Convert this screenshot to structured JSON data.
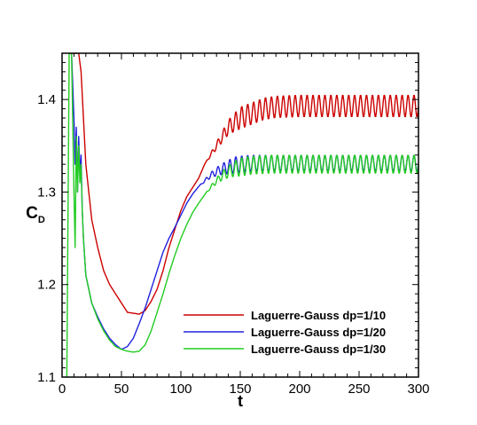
{
  "chart_data": {
    "type": "line",
    "xlabel": "t",
    "ylabel_main": "C",
    "ylabel_sub": "D",
    "xlim": [
      0,
      300
    ],
    "ylim": [
      1.1,
      1.45
    ],
    "xticks": [
      0,
      50,
      100,
      150,
      200,
      250,
      300
    ],
    "yticks": [
      1.1,
      1.2,
      1.3,
      1.4
    ],
    "xtick_labels": [
      "0",
      "50",
      "100",
      "150",
      "200",
      "250",
      "300"
    ],
    "ytick_labels": [
      "1.1",
      "1.2",
      "1.3",
      "1.4"
    ],
    "grid": false,
    "legend_position": "bottom-right",
    "series": [
      {
        "name": "Laguerre-Gauss dp=1/10",
        "color": "#cc0000",
        "x": [
          6,
          8,
          10,
          12,
          14,
          16,
          18,
          20,
          25,
          30,
          35,
          40,
          45,
          50,
          55,
          60,
          65,
          70,
          75,
          80,
          85,
          90,
          95,
          100,
          105,
          110,
          115,
          120,
          125,
          130,
          135,
          140,
          145,
          150,
          160,
          170,
          180,
          200,
          225,
          250,
          275,
          300
        ],
        "y": [
          1.45,
          1.45,
          1.45,
          1.45,
          1.45,
          1.43,
          1.38,
          1.33,
          1.27,
          1.24,
          1.215,
          1.2,
          1.19,
          1.18,
          1.17,
          1.169,
          1.168,
          1.172,
          1.182,
          1.195,
          1.215,
          1.24,
          1.26,
          1.28,
          1.295,
          1.305,
          1.315,
          1.33,
          1.34,
          1.35,
          1.36,
          1.37,
          1.375,
          1.38,
          1.385,
          1.39,
          1.392,
          1.393,
          1.393,
          1.393,
          1.393,
          1.393
        ],
        "osc_start": 120,
        "osc_amp": 0.012,
        "osc_period": 5
      },
      {
        "name": "Laguerre-Gauss dp=1/20",
        "color": "#2222dd",
        "x": [
          6,
          8,
          10,
          11,
          12,
          13,
          14,
          15,
          16,
          17,
          18,
          20,
          25,
          30,
          35,
          40,
          45,
          50,
          55,
          60,
          65,
          70,
          75,
          80,
          85,
          90,
          95,
          100,
          105,
          110,
          115,
          120,
          125,
          130,
          135,
          140,
          145,
          150,
          160,
          175,
          200,
          250,
          300
        ],
        "y": [
          1.45,
          1.45,
          1.38,
          1.33,
          1.37,
          1.3,
          1.36,
          1.32,
          1.34,
          1.28,
          1.25,
          1.21,
          1.18,
          1.165,
          1.152,
          1.142,
          1.135,
          1.13,
          1.133,
          1.142,
          1.158,
          1.175,
          1.195,
          1.215,
          1.235,
          1.25,
          1.262,
          1.275,
          1.288,
          1.298,
          1.306,
          1.312,
          1.318,
          1.322,
          1.325,
          1.327,
          1.329,
          1.33,
          1.331,
          1.331,
          1.331,
          1.331,
          1.331
        ],
        "osc_start": 115,
        "osc_amp": 0.009,
        "osc_period": 5
      },
      {
        "name": "Laguerre-Gauss dp=1/30",
        "color": "#22cc22",
        "x": [
          4,
          6,
          8,
          10,
          11,
          12,
          13,
          14,
          15,
          16,
          17,
          18,
          20,
          25,
          30,
          35,
          40,
          45,
          50,
          55,
          60,
          65,
          70,
          75,
          80,
          85,
          90,
          95,
          100,
          105,
          110,
          115,
          120,
          125,
          130,
          135,
          140,
          145,
          150,
          160,
          175,
          200,
          250,
          300
        ],
        "y": [
          1.1,
          1.45,
          1.45,
          1.3,
          1.24,
          1.36,
          1.3,
          1.35,
          1.31,
          1.33,
          1.28,
          1.25,
          1.21,
          1.18,
          1.163,
          1.15,
          1.14,
          1.133,
          1.13,
          1.128,
          1.127,
          1.128,
          1.135,
          1.15,
          1.17,
          1.19,
          1.212,
          1.232,
          1.25,
          1.265,
          1.278,
          1.288,
          1.297,
          1.305,
          1.312,
          1.318,
          1.322,
          1.325,
          1.327,
          1.329,
          1.33,
          1.33,
          1.33,
          1.33
        ],
        "osc_start": 120,
        "osc_amp": 0.01,
        "osc_period": 5
      }
    ]
  }
}
